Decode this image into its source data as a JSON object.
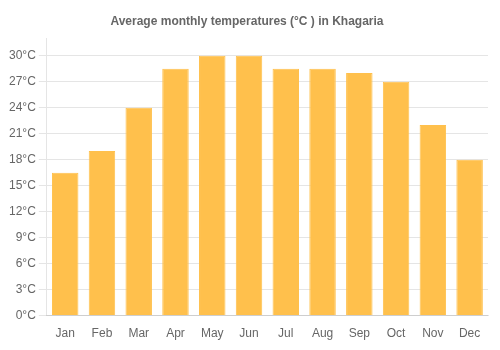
{
  "chart_data": {
    "type": "bar",
    "title": "Average monthly temperatures (°C ) in Khagaria",
    "categories": [
      "Jan",
      "Feb",
      "Mar",
      "Apr",
      "May",
      "Jun",
      "Jul",
      "Aug",
      "Sep",
      "Oct",
      "Nov",
      "Dec"
    ],
    "values": [
      16.5,
      19.0,
      24.0,
      28.5,
      30.0,
      30.0,
      28.5,
      28.5,
      28.0,
      27.0,
      22.0,
      18.0
    ],
    "color": "#FFC04C",
    "ylim": [
      0,
      32
    ],
    "yticks": [
      {
        "value": 0,
        "label": "0°C"
      },
      {
        "value": 3,
        "label": "3°C"
      },
      {
        "value": 6,
        "label": "6°C"
      },
      {
        "value": 9,
        "label": "9°C"
      },
      {
        "value": 12,
        "label": "12°C"
      },
      {
        "value": 15,
        "label": "15°C"
      },
      {
        "value": 18,
        "label": "18°C"
      },
      {
        "value": 21,
        "label": "21°C"
      },
      {
        "value": 24,
        "label": "24°C"
      },
      {
        "value": 27,
        "label": "27°C"
      },
      {
        "value": 30,
        "label": "30°C"
      }
    ],
    "grid": true
  }
}
